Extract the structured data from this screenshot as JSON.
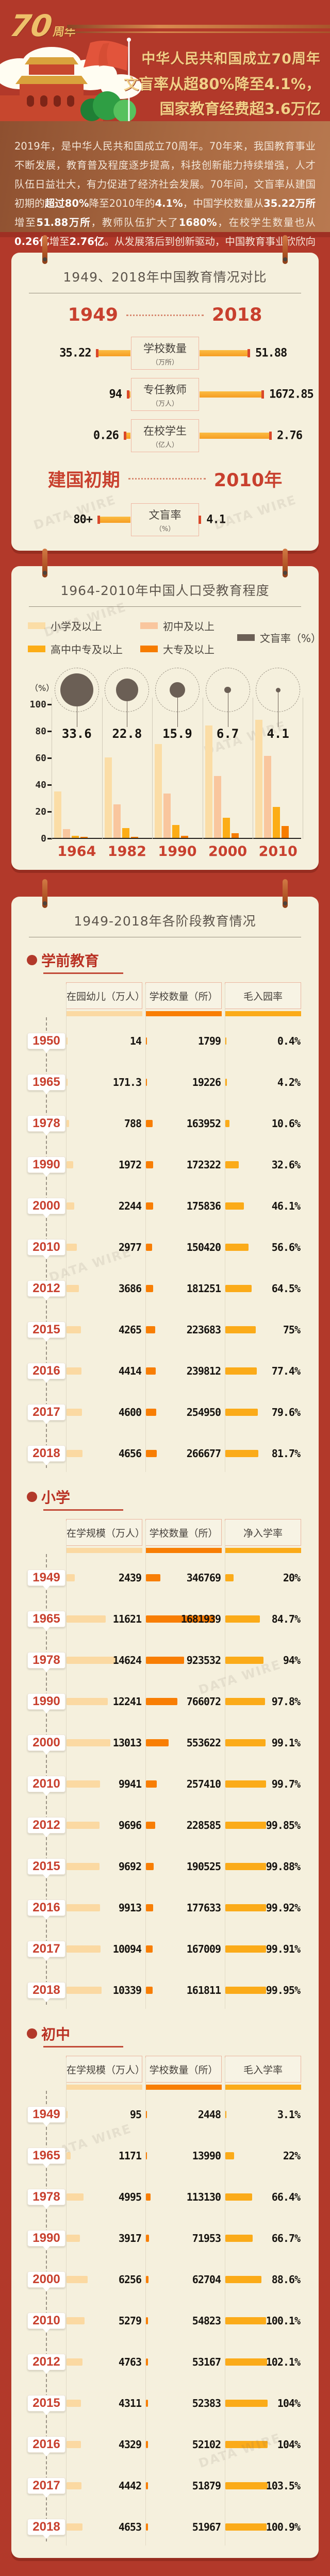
{
  "header": {
    "logo_num": "70",
    "logo_suffix": "周年",
    "title_lines": [
      "中华人民共和国成立70周年",
      "文盲率从超80%降至4.1%，",
      "国家教育经费超3.6万亿"
    ]
  },
  "intro": {
    "segments": [
      {
        "t": "2019年，是中华人民共和国成立70周年。70年来，我国教育事业不断发展，教育普及程度逐步提高，科技创新能力持续增强，人才队伍日益壮大，有力促进了经济社会发展。70年间，文盲率从建国初期的",
        "b": false
      },
      {
        "t": "超过80%",
        "b": true
      },
      {
        "t": "降至2010年的",
        "b": false
      },
      {
        "t": "4.1%",
        "b": true
      },
      {
        "t": "，中国学校数量从",
        "b": false
      },
      {
        "t": "35.22万所",
        "b": true
      },
      {
        "t": "增至",
        "b": false
      },
      {
        "t": "51.88万所",
        "b": true
      },
      {
        "t": "，教师队伍扩大了",
        "b": false
      },
      {
        "t": "1680%",
        "b": true
      },
      {
        "t": "，在校学生数量也从",
        "b": false
      },
      {
        "t": "0.26亿",
        "b": true
      },
      {
        "t": "增至",
        "b": false
      },
      {
        "t": "2.76亿",
        "b": true
      },
      {
        "t": "。从发展落后到创新驱动，中国教育事业欣欣向荣。",
        "b": false
      }
    ]
  },
  "card3": {
    "title": "1949-2018年各阶段教育情况"
  },
  "watermark": "DATA WIRE",
  "colors": {
    "background_red": "#b2392a",
    "card_cream": "#f5f0dd",
    "accent_red": "#c8402e",
    "gold": "#f2cf87",
    "bar_amber": "#f69d23",
    "bar_tip": "#d9482a",
    "col1_bar": "#fbd9a2",
    "col2_bar": "#f87e04",
    "col3_bar": "#fbab19",
    "bubble_gray": "#6b5f55"
  },
  "chart_data": [
    {
      "type": "bar",
      "title": "1949、2018年中国教育情况对比",
      "left_label": "1949",
      "right_label": "2018",
      "rows": [
        {
          "label": "学校数量",
          "unit": "（万所）",
          "left": "35.22",
          "right": "51.88"
        },
        {
          "label": "专任教师",
          "unit": "（万人）",
          "left": "94",
          "right": "1672.85"
        },
        {
          "label": "在校学生",
          "unit": "（亿人）",
          "left": "0.26",
          "right": "2.76"
        }
      ],
      "left_label2": "建国初期",
      "right_label2": "2010年",
      "rows2": [
        {
          "label": "文盲率",
          "unit": "（%）",
          "left": "80+",
          "right": "4.1"
        }
      ]
    },
    {
      "type": "bar",
      "title": "1964-2010年中国人口受教育程度",
      "categories": [
        "1964",
        "1982",
        "1990",
        "2000",
        "2010"
      ],
      "series": [
        {
          "name": "小学及以上",
          "color": "#fbdda6",
          "values": [
            34.5,
            60,
            70,
            84,
            88
          ]
        },
        {
          "name": "初中及以上",
          "color": "#f9c69e",
          "values": [
            6.5,
            25,
            33,
            46,
            61
          ]
        },
        {
          "name": "高中中专及以上",
          "color": "#fcad17",
          "values": [
            1.7,
            7.5,
            9.5,
            15,
            23
          ]
        },
        {
          "name": "大专及以上",
          "color": "#f67c00",
          "values": [
            0.2,
            0.6,
            1.4,
            3.6,
            9
          ]
        }
      ],
      "bubble_series": {
        "name": "文盲率（%）",
        "color": "#6b5f55",
        "values": [
          33.6,
          22.8,
          15.9,
          6.7,
          4.1
        ]
      },
      "ylabel": "（%）",
      "yticks": [
        100,
        80,
        60,
        40,
        20,
        0
      ],
      "ylim": [
        0,
        100
      ],
      "legend_position": "top",
      "grid": true
    },
    {
      "type": "table",
      "section": "学前教育",
      "columns": [
        "在园幼儿（万人）",
        "学校数量（所）",
        "毛入园率"
      ],
      "years": [
        "1950",
        "1965",
        "1978",
        "1990",
        "2000",
        "2010",
        "2012",
        "2015",
        "2016",
        "2017",
        "2018"
      ],
      "rows": [
        [
          "14",
          "1799",
          "0.4%"
        ],
        [
          "171.3",
          "19226",
          "4.2%"
        ],
        [
          "788",
          "163952",
          "10.6%"
        ],
        [
          "1972",
          "172322",
          "32.6%"
        ],
        [
          "2244",
          "175836",
          "46.1%"
        ],
        [
          "2977",
          "150420",
          "56.6%"
        ],
        [
          "3686",
          "181251",
          "64.5%"
        ],
        [
          "4265",
          "223683",
          "75%"
        ],
        [
          "4414",
          "239812",
          "77.4%"
        ],
        [
          "4600",
          "254950",
          "79.6%"
        ],
        [
          "4656",
          "266677",
          "81.7%"
        ]
      ]
    },
    {
      "type": "table",
      "section": "小学",
      "columns": [
        "在学规模（万人）",
        "学校数量（所）",
        "净入学率"
      ],
      "years": [
        "1949",
        "1965",
        "1978",
        "1990",
        "2000",
        "2010",
        "2012",
        "2015",
        "2016",
        "2017",
        "2018"
      ],
      "rows": [
        [
          "2439",
          "346769",
          "20%"
        ],
        [
          "11621",
          "1681939",
          "84.7%"
        ],
        [
          "14624",
          "923532",
          "94%"
        ],
        [
          "12241",
          "766072",
          "97.8%"
        ],
        [
          "13013",
          "553622",
          "99.1%"
        ],
        [
          "9941",
          "257410",
          "99.7%"
        ],
        [
          "9696",
          "228585",
          "99.85%"
        ],
        [
          "9692",
          "190525",
          "99.88%"
        ],
        [
          "9913",
          "177633",
          "99.92%"
        ],
        [
          "10094",
          "167009",
          "99.91%"
        ],
        [
          "10339",
          "161811",
          "99.95%"
        ]
      ]
    },
    {
      "type": "table",
      "section": "初中",
      "columns": [
        "在学规模（万人）",
        "学校数量（所）",
        "毛入学率"
      ],
      "years": [
        "1949",
        "1965",
        "1978",
        "1990",
        "2000",
        "2010",
        "2012",
        "2015",
        "2016",
        "2017",
        "2018"
      ],
      "rows": [
        [
          "95",
          "2448",
          "3.1%"
        ],
        [
          "1171",
          "13990",
          "22%"
        ],
        [
          "4995",
          "113130",
          "66.4%"
        ],
        [
          "3917",
          "71953",
          "66.7%"
        ],
        [
          "6256",
          "62704",
          "88.6%"
        ],
        [
          "5279",
          "54823",
          "100.1%"
        ],
        [
          "4763",
          "53167",
          "102.1%"
        ],
        [
          "4311",
          "52383",
          "104%"
        ],
        [
          "4329",
          "52102",
          "104%"
        ],
        [
          "4442",
          "51879",
          "103.5%"
        ],
        [
          "4653",
          "51967",
          "100.9%"
        ]
      ]
    }
  ]
}
